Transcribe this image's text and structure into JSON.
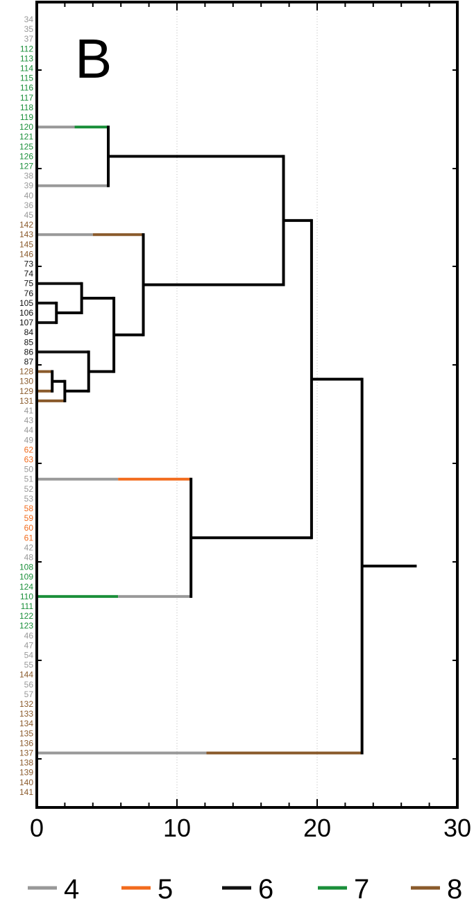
{
  "chart_data": {
    "type": "dendrogram",
    "panel_label": "B",
    "xlim": [
      0,
      30
    ],
    "x_ticks": [
      0,
      10,
      20,
      30
    ],
    "x_tick_labels": [
      "0",
      "10",
      "20",
      "30"
    ],
    "grid": "dotted vertical lines at 10 and 20",
    "leaves": [
      {
        "label": "34",
        "group": "4"
      },
      {
        "label": "35",
        "group": "4"
      },
      {
        "label": "37",
        "group": "4"
      },
      {
        "label": "112",
        "group": "7"
      },
      {
        "label": "113",
        "group": "7"
      },
      {
        "label": "114",
        "group": "7"
      },
      {
        "label": "115",
        "group": "7"
      },
      {
        "label": "116",
        "group": "7"
      },
      {
        "label": "117",
        "group": "7"
      },
      {
        "label": "118",
        "group": "7"
      },
      {
        "label": "119",
        "group": "7"
      },
      {
        "label": "120",
        "group": "7"
      },
      {
        "label": "121",
        "group": "7"
      },
      {
        "label": "125",
        "group": "7"
      },
      {
        "label": "126",
        "group": "7"
      },
      {
        "label": "127",
        "group": "7"
      },
      {
        "label": "38",
        "group": "4"
      },
      {
        "label": "39",
        "group": "4"
      },
      {
        "label": "40",
        "group": "4"
      },
      {
        "label": "36",
        "group": "4"
      },
      {
        "label": "45",
        "group": "4"
      },
      {
        "label": "142",
        "group": "8"
      },
      {
        "label": "143",
        "group": "8"
      },
      {
        "label": "145",
        "group": "8"
      },
      {
        "label": "146",
        "group": "8"
      },
      {
        "label": "73",
        "group": "6"
      },
      {
        "label": "74",
        "group": "6"
      },
      {
        "label": "75",
        "group": "6"
      },
      {
        "label": "76",
        "group": "6"
      },
      {
        "label": "105",
        "group": "6"
      },
      {
        "label": "106",
        "group": "6"
      },
      {
        "label": "107",
        "group": "6"
      },
      {
        "label": "84",
        "group": "6"
      },
      {
        "label": "85",
        "group": "6"
      },
      {
        "label": "86",
        "group": "6"
      },
      {
        "label": "87",
        "group": "6"
      },
      {
        "label": "128",
        "group": "8"
      },
      {
        "label": "130",
        "group": "8"
      },
      {
        "label": "129",
        "group": "8"
      },
      {
        "label": "131",
        "group": "8"
      },
      {
        "label": "41",
        "group": "4"
      },
      {
        "label": "43",
        "group": "4"
      },
      {
        "label": "44",
        "group": "4"
      },
      {
        "label": "49",
        "group": "4"
      },
      {
        "label": "62",
        "group": "5"
      },
      {
        "label": "63",
        "group": "5"
      },
      {
        "label": "50",
        "group": "4"
      },
      {
        "label": "51",
        "group": "4"
      },
      {
        "label": "52",
        "group": "4"
      },
      {
        "label": "53",
        "group": "4"
      },
      {
        "label": "58",
        "group": "5"
      },
      {
        "label": "59",
        "group": "5"
      },
      {
        "label": "60",
        "group": "5"
      },
      {
        "label": "61",
        "group": "5"
      },
      {
        "label": "42",
        "group": "4"
      },
      {
        "label": "48",
        "group": "4"
      },
      {
        "label": "108",
        "group": "7"
      },
      {
        "label": "109",
        "group": "7"
      },
      {
        "label": "124",
        "group": "7"
      },
      {
        "label": "110",
        "group": "7"
      },
      {
        "label": "111",
        "group": "7"
      },
      {
        "label": "122",
        "group": "7"
      },
      {
        "label": "123",
        "group": "7"
      },
      {
        "label": "46",
        "group": "4"
      },
      {
        "label": "47",
        "group": "4"
      },
      {
        "label": "54",
        "group": "4"
      },
      {
        "label": "55",
        "group": "4"
      },
      {
        "label": "144",
        "group": "8"
      },
      {
        "label": "56",
        "group": "4"
      },
      {
        "label": "57",
        "group": "4"
      },
      {
        "label": "132",
        "group": "8"
      },
      {
        "label": "133",
        "group": "8"
      },
      {
        "label": "134",
        "group": "8"
      },
      {
        "label": "135",
        "group": "8"
      },
      {
        "label": "136",
        "group": "8"
      },
      {
        "label": "137",
        "group": "8"
      },
      {
        "label": "138",
        "group": "8"
      },
      {
        "label": "139",
        "group": "8"
      },
      {
        "label": "140",
        "group": "8"
      },
      {
        "label": "141",
        "group": "8"
      }
    ],
    "group_colors": {
      "4": "#999999",
      "5": "#f26b1d",
      "6": "#111111",
      "7": "#1a8f3a",
      "8": "#8a5a2b"
    },
    "legend": [
      {
        "label": "4",
        "color": "#999999"
      },
      {
        "label": "5",
        "color": "#f26b1d"
      },
      {
        "label": "6",
        "color": "#111111"
      },
      {
        "label": "7",
        "color": "#1a8f3a"
      },
      {
        "label": "8",
        "color": "#8a5a2b"
      }
    ],
    "legend_position": "bottom",
    "horizontal_branches": [
      {
        "id": "b1",
        "leaf": "120",
        "x0": 0,
        "x1": 5.1,
        "segments": [
          {
            "to": 2.7,
            "group": "4"
          },
          {
            "to": 5.1,
            "group": "7"
          }
        ]
      },
      {
        "id": "b2",
        "leaf": "39",
        "x0": 0,
        "x1": 5.1,
        "segments": [
          {
            "to": 5.1,
            "group": "4"
          }
        ]
      },
      {
        "id": "b3",
        "leaf": "143",
        "x0": 0,
        "x1": 7.6,
        "segments": [
          {
            "to": 4.0,
            "group": "4"
          },
          {
            "to": 7.6,
            "group": "8"
          }
        ]
      },
      {
        "id": "b4",
        "leaf": "75",
        "x0": 0,
        "x1": 3.2,
        "segments": [
          {
            "to": 3.2,
            "group": "6"
          }
        ]
      },
      {
        "id": "b5",
        "leaf": "105",
        "x0": 0,
        "x1": 1.4,
        "segments": [
          {
            "to": 1.4,
            "group": "6"
          }
        ]
      },
      {
        "id": "b6",
        "leaf": "107",
        "x0": 0,
        "x1": 1.4,
        "segments": [
          {
            "to": 1.4,
            "group": "6"
          }
        ]
      },
      {
        "id": "b7",
        "leaf": "86",
        "x0": 0,
        "x1": 3.7,
        "segments": [
          {
            "to": 3.7,
            "group": "6"
          }
        ]
      },
      {
        "id": "b8",
        "leaf": "128",
        "x0": 0,
        "x1": 1.1,
        "segments": [
          {
            "to": 1.1,
            "group": "8"
          }
        ]
      },
      {
        "id": "b9",
        "leaf": "129",
        "x0": 0,
        "x1": 1.1,
        "segments": [
          {
            "to": 1.1,
            "group": "8"
          }
        ]
      },
      {
        "id": "b10",
        "leaf": "131",
        "x0": 0,
        "x1": 2.0,
        "segments": [
          {
            "to": 2.0,
            "group": "8"
          }
        ]
      },
      {
        "id": "b11",
        "leaf": "51",
        "x0": 0,
        "x1": 11.0,
        "segments": [
          {
            "to": 5.8,
            "group": "4"
          },
          {
            "to": 11.0,
            "group": "5"
          }
        ]
      },
      {
        "id": "b12",
        "leaf": "110",
        "x0": 0,
        "x1": 11.0,
        "segments": [
          {
            "to": 5.8,
            "group": "7"
          },
          {
            "to": 11.0,
            "group": "4"
          }
        ]
      },
      {
        "id": "b13",
        "leaf": "137",
        "x0": 0,
        "x1": 23.2,
        "segments": [
          {
            "to": 12.1,
            "group": "4"
          },
          {
            "to": 23.2,
            "group": "8"
          }
        ]
      }
    ],
    "merges": [
      {
        "id": "m1",
        "height": 5.1,
        "children": [
          "b1",
          "b2"
        ]
      },
      {
        "id": "m2",
        "height": 1.4,
        "children": [
          "b5",
          "b6"
        ]
      },
      {
        "id": "m3",
        "height": 3.2,
        "children": [
          "b4",
          "m2"
        ]
      },
      {
        "id": "m4",
        "height": 1.1,
        "children": [
          "b8",
          "b9"
        ]
      },
      {
        "id": "m5",
        "height": 2.0,
        "children": [
          "m4",
          "b10"
        ]
      },
      {
        "id": "m6",
        "height": 3.7,
        "children": [
          "b7",
          "m5"
        ]
      },
      {
        "id": "m7",
        "height": 5.5,
        "children": [
          "m3",
          "m6"
        ]
      },
      {
        "id": "m8",
        "height": 7.6,
        "children": [
          "b3",
          "m7"
        ]
      },
      {
        "id": "m9",
        "height": 17.6,
        "children": [
          "m1",
          "m8"
        ]
      },
      {
        "id": "m10",
        "height": 11.0,
        "children": [
          "b11",
          "b12"
        ]
      },
      {
        "id": "m11",
        "height": 19.6,
        "children": [
          "m9",
          "m10"
        ]
      },
      {
        "id": "m12",
        "height": 23.2,
        "children": [
          "m11",
          "b13"
        ]
      }
    ],
    "root_height": 27.1
  }
}
